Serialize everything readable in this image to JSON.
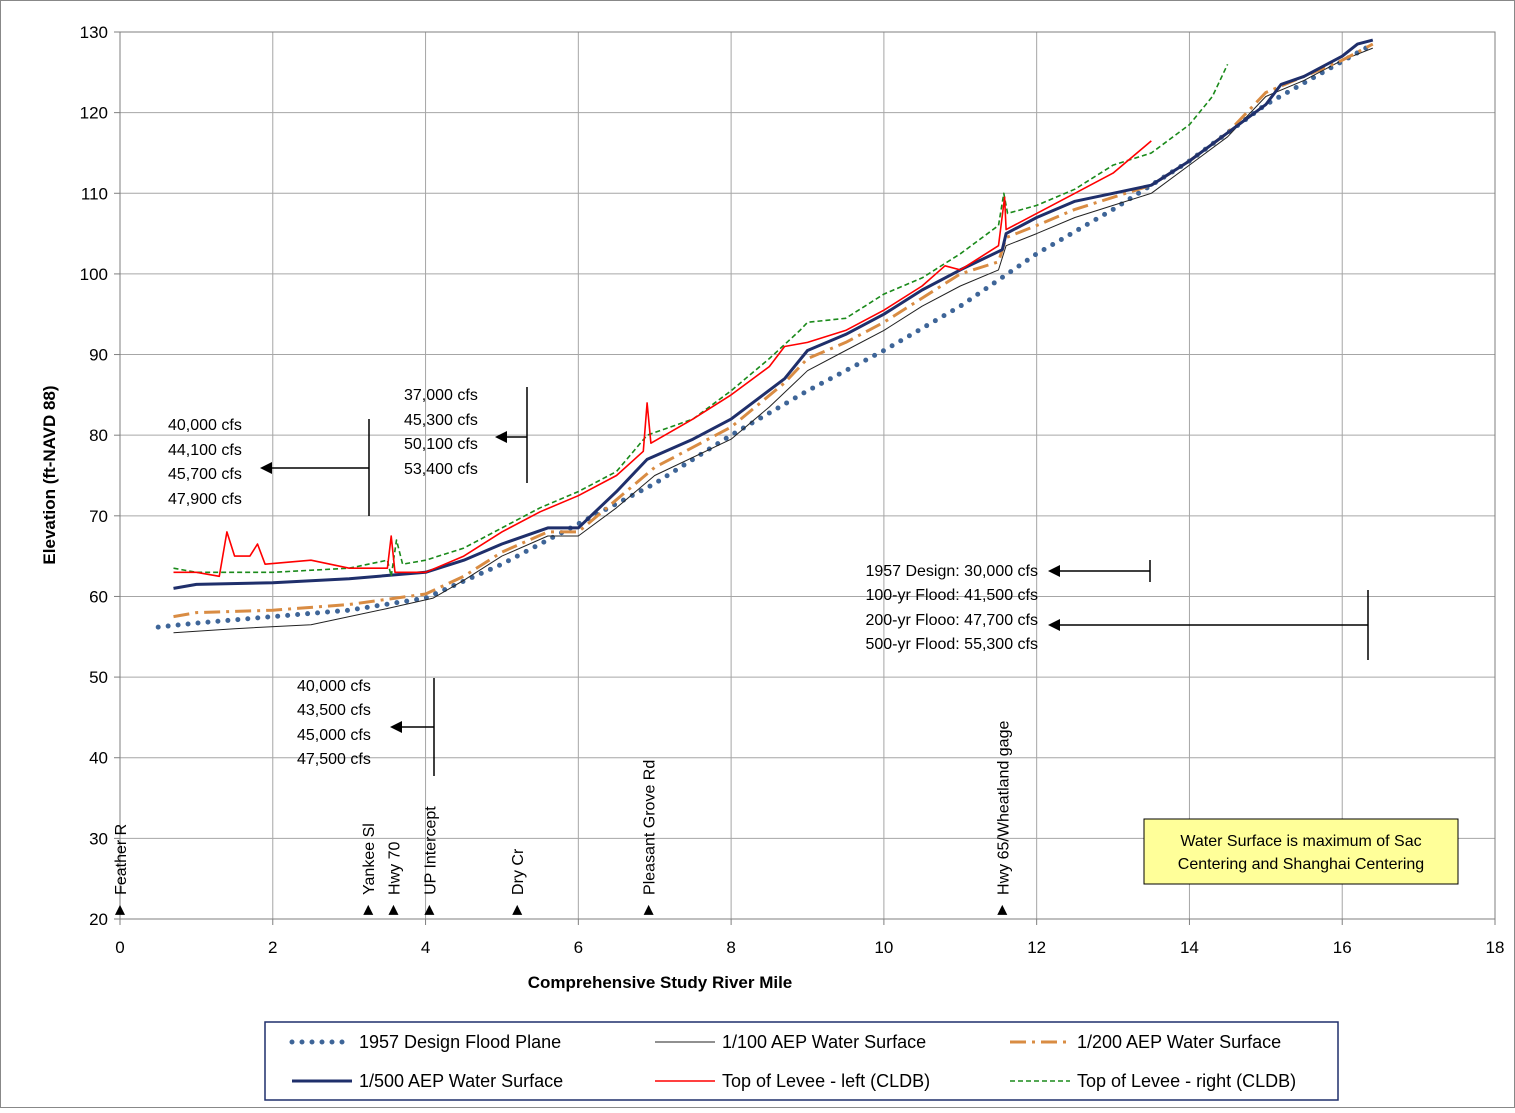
{
  "chart_data": {
    "type": "line",
    "xlabel": "Comprehensive Study River Mile",
    "ylabel": "Elevation (ft-NAVD 88)",
    "xlim": [
      0,
      18
    ],
    "ylim": [
      20,
      130
    ],
    "xticks": [
      0,
      2,
      4,
      6,
      8,
      10,
      12,
      14,
      16,
      18
    ],
    "yticks": [
      20,
      30,
      40,
      50,
      60,
      70,
      80,
      90,
      100,
      110,
      120,
      130
    ],
    "grid": true,
    "legend_position": "bottom",
    "series": [
      {
        "name": "1957 Design Flood Plane",
        "color": "#3e6598",
        "style": "dotted",
        "points": [
          [
            0.5,
            56.2
          ],
          [
            1.0,
            56.7
          ],
          [
            2.0,
            57.5
          ],
          [
            3.0,
            58.3
          ],
          [
            4.0,
            59.8
          ],
          [
            5.0,
            64.0
          ],
          [
            6.0,
            69.0
          ],
          [
            7.0,
            74.0
          ],
          [
            8.0,
            80.0
          ],
          [
            9.0,
            85.5
          ],
          [
            10.0,
            90.5
          ],
          [
            11.0,
            96.0
          ],
          [
            12.0,
            102.5
          ],
          [
            13.0,
            108.0
          ],
          [
            14.0,
            114.0
          ],
          [
            15.0,
            121.0
          ],
          [
            16.4,
            128.5
          ]
        ]
      },
      {
        "name": "1/100 AEP Water Surface",
        "color": "#222222",
        "style": "thin",
        "points": [
          [
            0.7,
            55.5
          ],
          [
            1.5,
            56.0
          ],
          [
            2.5,
            56.5
          ],
          [
            3.5,
            58.5
          ],
          [
            4.1,
            59.8
          ],
          [
            4.5,
            62.0
          ],
          [
            5.0,
            65.0
          ],
          [
            5.6,
            67.5
          ],
          [
            6.0,
            67.5
          ],
          [
            6.5,
            71.0
          ],
          [
            7.0,
            75.0
          ],
          [
            8.0,
            79.5
          ],
          [
            8.5,
            83.5
          ],
          [
            9.0,
            88.0
          ],
          [
            9.5,
            90.5
          ],
          [
            10.0,
            93.0
          ],
          [
            10.5,
            96.0
          ],
          [
            11.0,
            98.5
          ],
          [
            11.5,
            100.5
          ],
          [
            11.6,
            103.5
          ],
          [
            12.0,
            105.0
          ],
          [
            12.5,
            107.0
          ],
          [
            13.0,
            108.5
          ],
          [
            13.5,
            110.0
          ],
          [
            14.0,
            113.5
          ],
          [
            14.5,
            117.0
          ],
          [
            15.0,
            122.0
          ],
          [
            15.5,
            124.0
          ],
          [
            16.0,
            126.5
          ],
          [
            16.4,
            128.0
          ]
        ]
      },
      {
        "name": "1/200 AEP Water Surface",
        "color": "#d98c43",
        "style": "dashdot",
        "points": [
          [
            0.7,
            57.5
          ],
          [
            1.0,
            58.0
          ],
          [
            2.0,
            58.3
          ],
          [
            3.0,
            59.0
          ],
          [
            4.0,
            60.3
          ],
          [
            4.5,
            62.5
          ],
          [
            5.0,
            65.5
          ],
          [
            5.6,
            68.0
          ],
          [
            6.0,
            68.0
          ],
          [
            6.5,
            72.0
          ],
          [
            7.0,
            76.0
          ],
          [
            8.0,
            81.0
          ],
          [
            8.7,
            86.5
          ],
          [
            9.0,
            89.5
          ],
          [
            9.5,
            91.5
          ],
          [
            10.0,
            94.0
          ],
          [
            10.5,
            97.0
          ],
          [
            11.0,
            100.0
          ],
          [
            11.5,
            101.5
          ],
          [
            11.6,
            104.5
          ],
          [
            12.0,
            106.0
          ],
          [
            12.5,
            108.0
          ],
          [
            13.0,
            109.5
          ],
          [
            13.5,
            111.0
          ],
          [
            14.0,
            114.0
          ],
          [
            14.5,
            117.5
          ],
          [
            15.0,
            122.5
          ],
          [
            15.5,
            124.5
          ],
          [
            16.0,
            126.5
          ],
          [
            16.4,
            128.5
          ]
        ]
      },
      {
        "name": "1/500 AEP Water Surface",
        "color": "#1f2f6b",
        "style": "thick",
        "points": [
          [
            0.7,
            61.0
          ],
          [
            1.0,
            61.5
          ],
          [
            2.0,
            61.7
          ],
          [
            3.0,
            62.2
          ],
          [
            4.0,
            63.0
          ],
          [
            4.5,
            64.5
          ],
          [
            5.0,
            66.5
          ],
          [
            5.6,
            68.5
          ],
          [
            6.0,
            68.5
          ],
          [
            6.5,
            73.0
          ],
          [
            6.9,
            77.0
          ],
          [
            7.5,
            79.5
          ],
          [
            8.0,
            82.0
          ],
          [
            8.7,
            87.0
          ],
          [
            9.0,
            90.5
          ],
          [
            9.5,
            92.5
          ],
          [
            10.0,
            95.0
          ],
          [
            10.5,
            98.0
          ],
          [
            11.0,
            100.5
          ],
          [
            11.55,
            103.0
          ],
          [
            11.6,
            105.0
          ],
          [
            12.0,
            107.0
          ],
          [
            12.5,
            109.0
          ],
          [
            13.0,
            110.0
          ],
          [
            13.5,
            111.0
          ],
          [
            14.0,
            114.0
          ],
          [
            14.5,
            117.5
          ],
          [
            15.0,
            121.0
          ],
          [
            15.2,
            123.5
          ],
          [
            15.5,
            124.5
          ],
          [
            16.0,
            127.0
          ],
          [
            16.2,
            128.5
          ],
          [
            16.4,
            129.0
          ]
        ]
      },
      {
        "name": "Top of Levee - left (CLDB)",
        "color": "#ff0000",
        "style": "solid",
        "points": [
          [
            0.7,
            63.0
          ],
          [
            1.0,
            63.0
          ],
          [
            1.3,
            62.5
          ],
          [
            1.4,
            68.0
          ],
          [
            1.5,
            65.0
          ],
          [
            1.7,
            65.0
          ],
          [
            1.8,
            66.5
          ],
          [
            1.9,
            64.0
          ],
          [
            2.5,
            64.5
          ],
          [
            3.0,
            63.5
          ],
          [
            3.5,
            63.5
          ],
          [
            3.55,
            67.5
          ],
          [
            3.6,
            63.0
          ],
          [
            4.0,
            63.0
          ],
          [
            4.5,
            65.0
          ],
          [
            5.0,
            68.0
          ],
          [
            5.5,
            70.5
          ],
          [
            6.0,
            72.5
          ],
          [
            6.5,
            75.0
          ],
          [
            6.85,
            78.0
          ],
          [
            6.9,
            84.0
          ],
          [
            6.95,
            79.0
          ],
          [
            7.5,
            82.0
          ],
          [
            8.0,
            85.0
          ],
          [
            8.5,
            88.5
          ],
          [
            8.7,
            91.0
          ],
          [
            9.0,
            91.5
          ],
          [
            9.5,
            93.0
          ],
          [
            10.0,
            95.5
          ],
          [
            10.5,
            98.5
          ],
          [
            10.8,
            101.0
          ],
          [
            11.0,
            100.5
          ],
          [
            11.5,
            103.5
          ],
          [
            11.58,
            109.5
          ],
          [
            11.6,
            105.5
          ],
          [
            12.0,
            107.5
          ],
          [
            12.5,
            110.0
          ],
          [
            13.0,
            112.5
          ],
          [
            13.5,
            116.5
          ]
        ]
      },
      {
        "name": "Top of Levee - right (CLDB)",
        "color": "#1a8a1a",
        "style": "dashed",
        "points": [
          [
            0.7,
            63.5
          ],
          [
            1.0,
            63.0
          ],
          [
            2.0,
            63.0
          ],
          [
            3.0,
            63.5
          ],
          [
            3.5,
            64.5
          ],
          [
            3.55,
            62.5
          ],
          [
            3.62,
            67.0
          ],
          [
            3.7,
            64.0
          ],
          [
            4.0,
            64.5
          ],
          [
            4.5,
            66.0
          ],
          [
            5.0,
            68.5
          ],
          [
            5.5,
            71.0
          ],
          [
            6.0,
            73.0
          ],
          [
            6.5,
            75.5
          ],
          [
            6.9,
            80.0
          ],
          [
            7.5,
            82.0
          ],
          [
            8.0,
            85.5
          ],
          [
            8.5,
            89.5
          ],
          [
            8.9,
            93.0
          ],
          [
            9.0,
            94.0
          ],
          [
            9.5,
            94.5
          ],
          [
            10.0,
            97.5
          ],
          [
            10.5,
            99.5
          ],
          [
            11.0,
            102.5
          ],
          [
            11.5,
            106.0
          ],
          [
            11.57,
            110.0
          ],
          [
            11.62,
            107.5
          ],
          [
            12.0,
            108.5
          ],
          [
            12.5,
            110.5
          ],
          [
            13.0,
            113.5
          ],
          [
            13.5,
            115.0
          ],
          [
            14.0,
            118.5
          ],
          [
            14.3,
            122.0
          ],
          [
            14.5,
            126.0
          ]
        ]
      }
    ],
    "markers": {
      "y_value": 21,
      "items": [
        {
          "x": 0.0,
          "label": "Feather R"
        },
        {
          "x": 3.25,
          "label": "Yankee Sl"
        },
        {
          "x": 3.58,
          "label": "Hwy 70"
        },
        {
          "x": 4.05,
          "label": "UP Intercept"
        },
        {
          "x": 5.2,
          "label": "Dry Cr"
        },
        {
          "x": 6.92,
          "label": "Pleasant Grove Rd"
        },
        {
          "x": 11.55,
          "label": "Hwy 65/Wheatland gage"
        }
      ]
    },
    "flow_annotations": [
      {
        "lines": [
          "40,000 cfs",
          "44,100 cfs",
          "45,700 cfs",
          "47,900 cfs"
        ]
      },
      {
        "lines": [
          "37,000 cfs",
          "45,300 cfs",
          "50,100 cfs",
          "53,400 cfs"
        ]
      },
      {
        "lines": [
          "40,000 cfs",
          "43,500 cfs",
          "45,000 cfs",
          "47,500 cfs"
        ]
      },
      {
        "lines": [
          "1957 Design: 30,000 cfs",
          "100-yr Flood: 41,500 cfs",
          "200-yr Flooo: 47,700 cfs",
          "500-yr Flood: 55,300 cfs"
        ]
      }
    ],
    "note": "Water Surface is maximum of Sac Centering and Shanghai Centering",
    "note_color": "#ffff99"
  }
}
